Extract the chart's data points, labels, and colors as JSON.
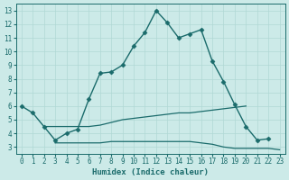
{
  "title": "",
  "xlabel": "Humidex (Indice chaleur)",
  "ylabel": "",
  "bg_color": "#cceae8",
  "line_color": "#1a6b6b",
  "grid_color": "#b0d8d5",
  "xlim": [
    -0.5,
    23.5
  ],
  "ylim": [
    2.5,
    13.5
  ],
  "yticks": [
    3,
    4,
    5,
    6,
    7,
    8,
    9,
    10,
    11,
    12,
    13
  ],
  "xticks": [
    0,
    1,
    2,
    3,
    4,
    5,
    6,
    7,
    8,
    9,
    10,
    11,
    12,
    13,
    14,
    15,
    16,
    17,
    18,
    19,
    20,
    21,
    22,
    23
  ],
  "series": [
    {
      "x": [
        0,
        1,
        2,
        3,
        4,
        5,
        6,
        7,
        8,
        9,
        10,
        11,
        12,
        13,
        14,
        15,
        16,
        17,
        18,
        19,
        20,
        21,
        22
      ],
      "y": [
        6.0,
        5.5,
        4.5,
        3.5,
        4.0,
        4.3,
        6.5,
        8.4,
        8.5,
        9.0,
        10.4,
        11.4,
        13.0,
        12.1,
        11.0,
        11.3,
        11.6,
        9.3,
        7.8,
        6.1,
        4.5,
        3.5,
        3.6
      ],
      "marker": "D",
      "markersize": 2.5,
      "linewidth": 1.0
    },
    {
      "x": [
        2,
        3,
        4,
        5,
        6,
        7,
        8,
        9,
        10,
        11,
        12,
        13,
        14,
        15,
        16,
        17,
        18,
        19,
        20
      ],
      "y": [
        4.5,
        4.5,
        4.5,
        4.5,
        4.5,
        4.6,
        4.8,
        5.0,
        5.1,
        5.2,
        5.3,
        5.4,
        5.5,
        5.5,
        5.6,
        5.7,
        5.8,
        5.9,
        6.0
      ],
      "marker": null,
      "markersize": 0,
      "linewidth": 0.9
    },
    {
      "x": [
        3,
        4,
        5,
        6,
        7,
        8,
        9,
        10,
        11,
        12,
        13,
        14,
        15,
        16,
        17,
        18,
        19,
        20,
        21,
        22,
        23
      ],
      "y": [
        3.3,
        3.3,
        3.3,
        3.3,
        3.3,
        3.4,
        3.4,
        3.4,
        3.4,
        3.4,
        3.4,
        3.4,
        3.4,
        3.3,
        3.2,
        3.0,
        2.9,
        2.9,
        2.9,
        2.9,
        2.8
      ],
      "marker": null,
      "markersize": 0,
      "linewidth": 0.9
    }
  ]
}
